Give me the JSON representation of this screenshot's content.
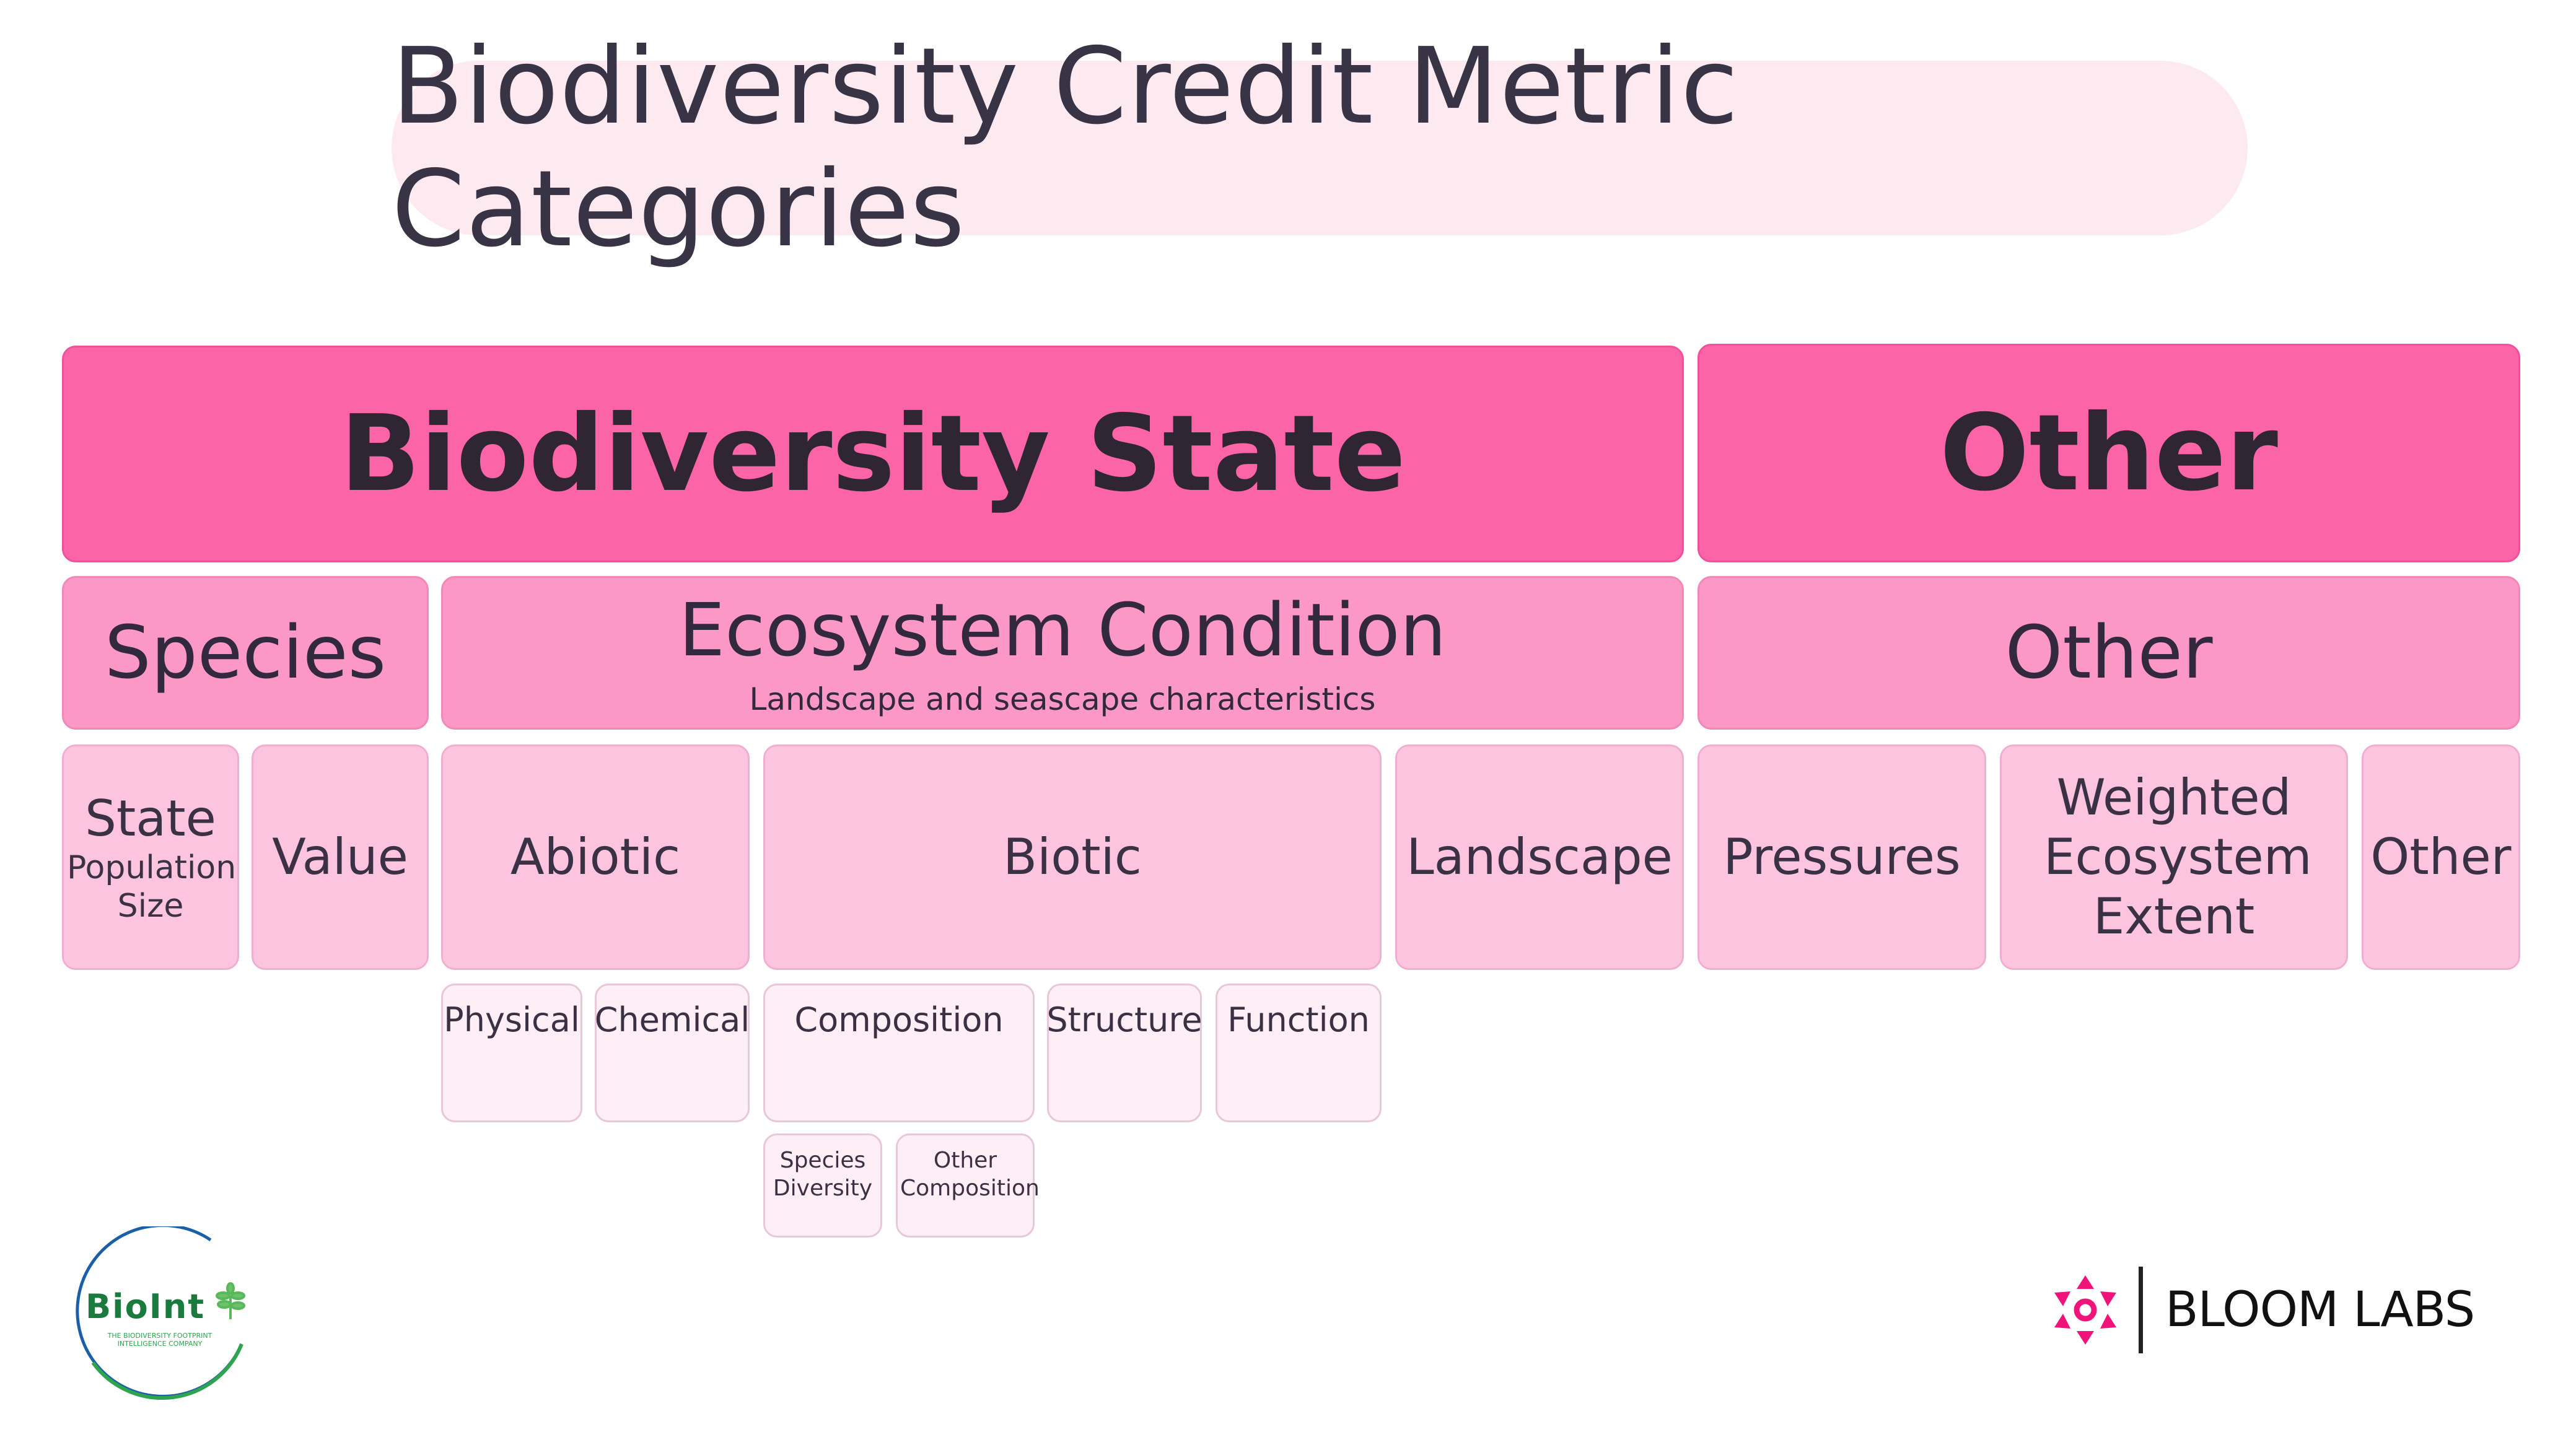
{
  "title": "Biodiversity Credit Metric Categories",
  "level1": {
    "biodiversity_state": "Biodiversity State",
    "other": "Other"
  },
  "level2": {
    "species": "Species",
    "ecosystem_condition": "Ecosystem Condition",
    "ecosystem_condition_sub": "Landscape and seascape characteristics",
    "other": "Other"
  },
  "level3": {
    "state": "State",
    "state_sub": "Population Size",
    "value": "Value",
    "abiotic": "Abiotic",
    "biotic": "Biotic",
    "landscape": "Landscape",
    "pressures": "Pressures",
    "weighted_ecosystem_extent": "Weighted Ecosystem Extent",
    "other": "Other"
  },
  "level4": {
    "physical": "Physical",
    "chemical": "Chemical",
    "composition": "Composition",
    "structure": "Structure",
    "function": "Function"
  },
  "level5": {
    "species_diversity": "Species Diversity",
    "other_composition": "Other Composition"
  },
  "logos": {
    "bioint": {
      "name": "BioInt",
      "tagline": "THE BIODIVERSITY FOOTPRINT INTELLIGENCE COMPANY",
      "text_color": "#1b7a3e",
      "ring_color_top": "#1b5fa8",
      "ring_color_bottom": "#2ea44f"
    },
    "bloom": {
      "name": "BLOOM LABS",
      "icon": "flower-icon",
      "icon_color": "#f0147a"
    }
  },
  "colors": {
    "level1": "#fc64a8",
    "level2": "#fc98c5",
    "level3": "#fcc4de",
    "level4": "#feeef5",
    "title_pill": "#fdeaf1"
  }
}
